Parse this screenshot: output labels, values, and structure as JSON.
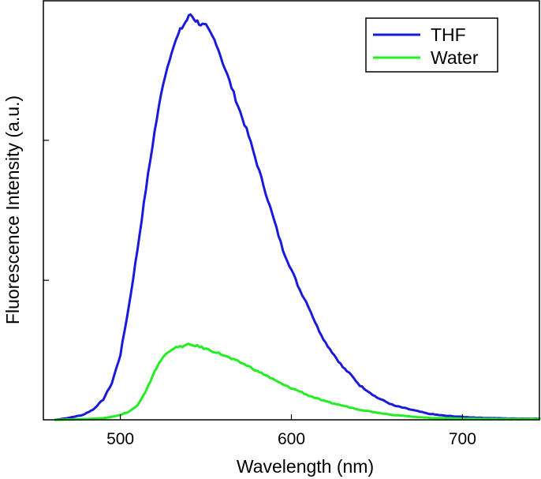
{
  "chart_data": {
    "type": "line",
    "xlabel": "Wavelength (nm)",
    "ylabel": "Fluorescence Intensity (a.u.)",
    "xlim": [
      455,
      745
    ],
    "ylim": [
      0,
      1.0
    ],
    "xticks": [
      500,
      600,
      700
    ],
    "yticks": [
      0.333,
      0.667
    ],
    "legend_position": "top-right",
    "grid": false,
    "series": [
      {
        "name": "THF",
        "color": "#1a1adb",
        "x": [
          462,
          470,
          478,
          484,
          490,
          495,
          500,
          505,
          510,
          515,
          520,
          525,
          530,
          535,
          538,
          541,
          544,
          547,
          550,
          553,
          556,
          560,
          565,
          570,
          575,
          580,
          585,
          590,
          595,
          600,
          605,
          610,
          615,
          620,
          625,
          630,
          635,
          640,
          645,
          650,
          660,
          670,
          680,
          690,
          700,
          710,
          720,
          730,
          745
        ],
        "y": [
          0.0,
          0.005,
          0.012,
          0.025,
          0.05,
          0.09,
          0.16,
          0.28,
          0.42,
          0.57,
          0.71,
          0.83,
          0.91,
          0.96,
          0.98,
          1.0,
          0.985,
          0.975,
          0.97,
          0.95,
          0.93,
          0.88,
          0.82,
          0.76,
          0.7,
          0.63,
          0.56,
          0.49,
          0.42,
          0.37,
          0.32,
          0.28,
          0.23,
          0.19,
          0.16,
          0.13,
          0.11,
          0.085,
          0.07,
          0.055,
          0.035,
          0.025,
          0.015,
          0.01,
          0.007,
          0.005,
          0.004,
          0.003,
          0.003
        ]
      },
      {
        "name": "Water",
        "color": "#22ee22",
        "x": [
          462,
          480,
          490,
          500,
          505,
          510,
          515,
          520,
          525,
          530,
          535,
          540,
          545,
          550,
          555,
          560,
          565,
          570,
          575,
          580,
          585,
          590,
          595,
          600,
          605,
          610,
          620,
          630,
          640,
          650,
          660,
          670,
          680,
          690,
          700,
          720,
          745
        ],
        "y": [
          0.0,
          0.002,
          0.004,
          0.012,
          0.02,
          0.035,
          0.07,
          0.12,
          0.155,
          0.175,
          0.18,
          0.185,
          0.182,
          0.175,
          0.168,
          0.16,
          0.15,
          0.142,
          0.132,
          0.12,
          0.11,
          0.098,
          0.087,
          0.078,
          0.07,
          0.06,
          0.045,
          0.035,
          0.025,
          0.018,
          0.012,
          0.008,
          0.005,
          0.004,
          0.003,
          0.002,
          0.002
        ]
      }
    ]
  }
}
